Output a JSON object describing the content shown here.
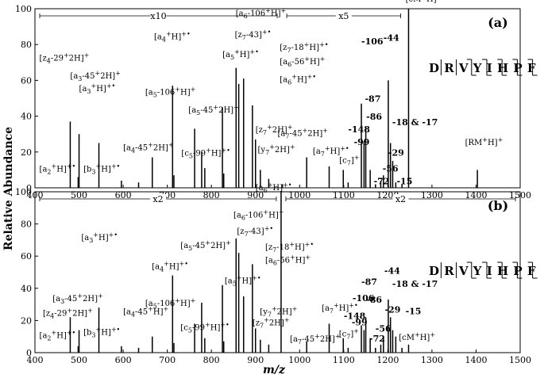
{
  "ylabel": "Relative Abundance",
  "xlabel": "m/z",
  "chart_data": [
    {
      "type": "bar",
      "panel_label": "(a)",
      "xlim": [
        400,
        1500
      ],
      "ylim": [
        0,
        100
      ],
      "x_ticks": [
        400,
        500,
        600,
        700,
        800,
        900,
        1000,
        1100,
        1200,
        1300,
        1400,
        1500
      ],
      "y_ticks": [
        0,
        20,
        40,
        60,
        80,
        100
      ],
      "magnification": [
        {
          "label": "x10",
          "from": 400,
          "to": 960
        },
        {
          "label": "x5",
          "from": 960,
          "to": 1240
        }
      ],
      "sequence": "DRVYIHPF",
      "peaks": [
        {
          "mz": 480,
          "y": 37
        },
        {
          "mz": 498,
          "y": 6
        },
        {
          "mz": 500,
          "y": 30
        },
        {
          "mz": 545,
          "y": 25
        },
        {
          "mz": 596,
          "y": 4
        },
        {
          "mz": 635,
          "y": 3
        },
        {
          "mz": 666,
          "y": 17
        },
        {
          "mz": 712,
          "y": 57
        },
        {
          "mz": 715,
          "y": 7
        },
        {
          "mz": 762,
          "y": 33
        },
        {
          "mz": 778,
          "y": 20
        },
        {
          "mz": 785,
          "y": 11
        },
        {
          "mz": 825,
          "y": 45
        },
        {
          "mz": 828,
          "y": 8
        },
        {
          "mz": 856,
          "y": 67
        },
        {
          "mz": 862,
          "y": 58
        },
        {
          "mz": 873,
          "y": 61
        },
        {
          "mz": 893,
          "y": 46
        },
        {
          "mz": 900,
          "y": 27
        },
        {
          "mz": 911,
          "y": 10
        },
        {
          "mz": 930,
          "y": 5
        },
        {
          "mz": 961,
          "y": 2
        },
        {
          "mz": 1016,
          "y": 17
        },
        {
          "mz": 1067,
          "y": 12
        },
        {
          "mz": 1099,
          "y": 10
        },
        {
          "mz": 1110,
          "y": 3
        },
        {
          "mz": 1140,
          "y": 47
        },
        {
          "mz": 1146,
          "y": 26
        },
        {
          "mz": 1150,
          "y": 34
        },
        {
          "mz": 1160,
          "y": 10
        },
        {
          "mz": 1172,
          "y": 2
        },
        {
          "mz": 1184,
          "y": 4
        },
        {
          "mz": 1190,
          "y": 7
        },
        {
          "mz": 1201,
          "y": 60
        },
        {
          "mz": 1206,
          "y": 25
        },
        {
          "mz": 1211,
          "y": 15
        },
        {
          "mz": 1218,
          "y": 3
        },
        {
          "mz": 1232,
          "y": 2
        },
        {
          "mz": 1247,
          "y": 100
        },
        {
          "mz": 1403,
          "y": 10
        }
      ],
      "labels": [
        {
          "text": "[z4-29+2H]+",
          "mz": 410,
          "y": 71
        },
        {
          "text": "[a3-45+2H]+",
          "mz": 480,
          "y": 61
        },
        {
          "text": "[a3+H]+•",
          "mz": 500,
          "y": 54
        },
        {
          "text": "[a2+H]+•",
          "mz": 410,
          "y": 9
        },
        {
          "text": "[b3+H]+•",
          "mz": 510,
          "y": 9
        },
        {
          "text": "[a4-45+2H]+",
          "mz": 600,
          "y": 21
        },
        {
          "text": "[a4+H]+•",
          "mz": 670,
          "y": 83
        },
        {
          "text": "[a5-106+H]+",
          "mz": 650,
          "y": 52
        },
        {
          "text": "[a5-45+2H]+",
          "mz": 748,
          "y": 42
        },
        {
          "text": "[c5-99+H]+•",
          "mz": 732,
          "y": 18
        },
        {
          "text": "[a6-106+H]+",
          "mz": 855,
          "y": 96
        },
        {
          "text": "[z7-43]+•",
          "mz": 853,
          "y": 84
        },
        {
          "text": "[a5+H]+•",
          "mz": 825,
          "y": 73
        },
        {
          "text": "[z7-18+H]+•",
          "mz": 955,
          "y": 77
        },
        {
          "text": "[a6-56+H]+",
          "mz": 955,
          "y": 69
        },
        {
          "text": "[a6+H]+•",
          "mz": 955,
          "y": 59
        },
        {
          "text": "[z7+2H]+",
          "mz": 900,
          "y": 31
        },
        {
          "text": "[y7+2H]+",
          "mz": 905,
          "y": 20
        },
        {
          "text": "[a7-45+2H]+",
          "mz": 950,
          "y": 29
        },
        {
          "text": "[a7+H]+•",
          "mz": 1030,
          "y": 19
        },
        {
          "text": "[c7]+",
          "mz": 1090,
          "y": 14
        },
        {
          "text": "-148",
          "mz": 1110,
          "y": 31
        },
        {
          "text": "-106",
          "mz": 1140,
          "y": 80
        },
        {
          "text": "-99",
          "mz": 1123,
          "y": 24
        },
        {
          "text": "-87",
          "mz": 1148,
          "y": 48
        },
        {
          "text": "-86",
          "mz": 1151,
          "y": 38
        },
        {
          "text": "-72",
          "mz": 1168,
          "y": 2
        },
        {
          "text": "-56",
          "mz": 1188,
          "y": 9
        },
        {
          "text": "-44",
          "mz": 1190,
          "y": 82
        },
        {
          "text": "-29",
          "mz": 1201,
          "y": 18
        },
        {
          "text": "-18 & -17",
          "mz": 1210,
          "y": 35
        },
        {
          "text": "-15",
          "mz": 1220,
          "y": 2
        },
        {
          "text": "[cM+H]+",
          "mz": 1240,
          "y": 104
        },
        {
          "text": "[RM+H]+",
          "mz": 1375,
          "y": 24
        }
      ]
    },
    {
      "type": "bar",
      "panel_label": "(b)",
      "xlim": [
        400,
        1500
      ],
      "ylim": [
        0,
        100
      ],
      "x_ticks": [
        400,
        500,
        600,
        700,
        800,
        900,
        1000,
        1100,
        1200,
        1300,
        1400,
        1500
      ],
      "y_ticks": [
        0,
        20,
        40,
        60,
        80,
        100
      ],
      "magnification": [
        {
          "label": "x2",
          "from": 400,
          "to": 958
        },
        {
          "label": "x2",
          "from": 958,
          "to": 1500
        }
      ],
      "sequence": "DRVYIHPF",
      "peaks": [
        {
          "mz": 480,
          "y": 22
        },
        {
          "mz": 498,
          "y": 4
        },
        {
          "mz": 500,
          "y": 14
        },
        {
          "mz": 545,
          "y": 28
        },
        {
          "mz": 596,
          "y": 4
        },
        {
          "mz": 635,
          "y": 3
        },
        {
          "mz": 666,
          "y": 10
        },
        {
          "mz": 712,
          "y": 48
        },
        {
          "mz": 715,
          "y": 6
        },
        {
          "mz": 762,
          "y": 18
        },
        {
          "mz": 778,
          "y": 31
        },
        {
          "mz": 785,
          "y": 9
        },
        {
          "mz": 825,
          "y": 42
        },
        {
          "mz": 828,
          "y": 7
        },
        {
          "mz": 856,
          "y": 71
        },
        {
          "mz": 862,
          "y": 62
        },
        {
          "mz": 873,
          "y": 35
        },
        {
          "mz": 893,
          "y": 55
        },
        {
          "mz": 900,
          "y": 15
        },
        {
          "mz": 911,
          "y": 8
        },
        {
          "mz": 930,
          "y": 5
        },
        {
          "mz": 958,
          "y": 100
        },
        {
          "mz": 1016,
          "y": 7
        },
        {
          "mz": 1067,
          "y": 18
        },
        {
          "mz": 1099,
          "y": 9
        },
        {
          "mz": 1110,
          "y": 3
        },
        {
          "mz": 1140,
          "y": 17
        },
        {
          "mz": 1146,
          "y": 14
        },
        {
          "mz": 1150,
          "y": 22
        },
        {
          "mz": 1160,
          "y": 9
        },
        {
          "mz": 1172,
          "y": 3
        },
        {
          "mz": 1184,
          "y": 5
        },
        {
          "mz": 1190,
          "y": 9
        },
        {
          "mz": 1201,
          "y": 33
        },
        {
          "mz": 1206,
          "y": 22
        },
        {
          "mz": 1211,
          "y": 14
        },
        {
          "mz": 1218,
          "y": 10
        },
        {
          "mz": 1232,
          "y": 3
        },
        {
          "mz": 1247,
          "y": 5
        }
      ],
      "labels": [
        {
          "text": "[a3+H]+•",
          "mz": 505,
          "y": 70
        },
        {
          "text": "[a3-45+2H]+",
          "mz": 440,
          "y": 32
        },
        {
          "text": "[z4-29+2H]+",
          "mz": 418,
          "y": 23
        },
        {
          "text": "[a2+H]+•",
          "mz": 410,
          "y": 9
        },
        {
          "text": "[b3+H]+•",
          "mz": 510,
          "y": 11
        },
        {
          "text": "[a4-45+H]+",
          "mz": 600,
          "y": 24
        },
        {
          "text": "[a4+H]+•",
          "mz": 665,
          "y": 52
        },
        {
          "text": "[a5-106+H]+",
          "mz": 650,
          "y": 29
        },
        {
          "text": "[c5-99+H]+•",
          "mz": 730,
          "y": 14
        },
        {
          "text": "[a5-45+2H]+",
          "mz": 730,
          "y": 65
        },
        {
          "text": "[a5+H]+•",
          "mz": 830,
          "y": 43
        },
        {
          "text": "[a6-106+H]+",
          "mz": 850,
          "y": 84
        },
        {
          "text": "[z7-43]+•",
          "mz": 858,
          "y": 74
        },
        {
          "text": "[a6+H]+•",
          "mz": 900,
          "y": 101
        },
        {
          "text": "[z7-18+H]+•",
          "mz": 922,
          "y": 64
        },
        {
          "text": "[a6-56+H]+",
          "mz": 922,
          "y": 56
        },
        {
          "text": "[y7+2H]+",
          "mz": 910,
          "y": 24
        },
        {
          "text": "[z7+2H]+",
          "mz": 893,
          "y": 17
        },
        {
          "text": "[a7-45+2H]+",
          "mz": 978,
          "y": 7
        },
        {
          "text": "[a7+H]+•",
          "mz": 1050,
          "y": 26
        },
        {
          "text": "[c7]+",
          "mz": 1089,
          "y": 10
        },
        {
          "text": "-148",
          "mz": 1100,
          "y": 21
        },
        {
          "text": "-106",
          "mz": 1120,
          "y": 32
        },
        {
          "text": "-87",
          "mz": 1140,
          "y": 42
        },
        {
          "text": "-86",
          "mz": 1151,
          "y": 31
        },
        {
          "text": "-99",
          "mz": 1118,
          "y": 17
        },
        {
          "text": "-72",
          "mz": 1158,
          "y": 7
        },
        {
          "text": "-56",
          "mz": 1172,
          "y": 13
        },
        {
          "text": "-44",
          "mz": 1192,
          "y": 49
        },
        {
          "text": "-29",
          "mz": 1193,
          "y": 25
        },
        {
          "text": "-18 & -17",
          "mz": 1210,
          "y": 41
        },
        {
          "text": "-15",
          "mz": 1240,
          "y": 24
        },
        {
          "text": "[cM+H]+",
          "mz": 1225,
          "y": 8
        }
      ]
    }
  ]
}
